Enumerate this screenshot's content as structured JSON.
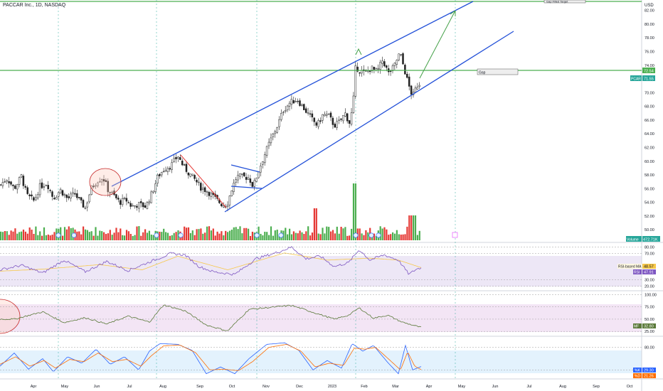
{
  "header": {
    "title": "PACCAR Inc., 1D, NASDAQ"
  },
  "currency": "USD",
  "colors": {
    "bull": "#26a69a",
    "bear": "#ef5350",
    "volume_bull": "#4caf50",
    "volume_bear": "#e53935",
    "channel": "#2250d8",
    "level": "#4caf50",
    "rsi": "#7e57c2",
    "rsi_ma": "#f7c84a",
    "mf": "#5b7a3a",
    "stoch_k": "#2962ff",
    "stoch_d": "#ff6d00",
    "text": "#131722"
  },
  "chart_data": [
    {
      "type": "candlestick",
      "title": "PACCAR Inc., 1D, NASDAQ",
      "yaxis_ticks": [
        "82.00",
        "80.00",
        "78.00",
        "76.00",
        "74.00",
        "72.00",
        "70.00",
        "68.00",
        "66.00",
        "64.00",
        "62.00",
        "60.00",
        "58.00",
        "56.00",
        "54.00",
        "52.00",
        "50.00"
      ],
      "ylim": [
        49.5,
        83
      ],
      "xaxis_ticks": [
        "Apr",
        "May",
        "Jun",
        "Jul",
        "Aug",
        "Sep",
        "Oct",
        "Nov",
        "Dec",
        "2023",
        "Feb",
        "Mar",
        "Apr",
        "May",
        "Jun",
        "Jul",
        "Aug",
        "Sep",
        "Oct"
      ],
      "price_labels": [
        {
          "name": "level",
          "value": "72.54"
        },
        {
          "name": "PCAR",
          "value": "71.55"
        },
        {
          "name": "Volume",
          "value": "472.71K"
        }
      ],
      "annotations": {
        "gap_label": "Gap",
        "target_label": "Gap Filled Target"
      },
      "series": [
        {
          "name": "PCAR",
          "anchors": [
            [
              0,
              56.5
            ],
            [
              10,
              57.5
            ],
            [
              20,
              56.0
            ],
            [
              30,
              57.8
            ],
            [
              38,
              55.0
            ],
            [
              48,
              54.2
            ],
            [
              56,
              56.3
            ],
            [
              66,
              56.8
            ],
            [
              75,
              54.6
            ],
            [
              85,
              55.8
            ],
            [
              95,
              54.5
            ],
            [
              105,
              55.3
            ],
            [
              113,
              54.0
            ],
            [
              120,
              53.2
            ],
            [
              128,
              56.0
            ],
            [
              137,
              57.2
            ],
            [
              145,
              57.6
            ],
            [
              152,
              55.8
            ],
            [
              160,
              55.0
            ],
            [
              168,
              54.0
            ],
            [
              177,
              54.4
            ],
            [
              185,
              53.4
            ],
            [
              195,
              53.7
            ],
            [
              205,
              53.4
            ],
            [
              213,
              55.2
            ],
            [
              222,
              57.8
            ],
            [
              232,
              59.0
            ],
            [
              240,
              59.3
            ],
            [
              250,
              60.8
            ],
            [
              258,
              59.2
            ],
            [
              266,
              58.2
            ],
            [
              274,
              57.3
            ],
            [
              282,
              56.2
            ],
            [
              292,
              55.6
            ],
            [
              302,
              54.6
            ],
            [
              312,
              53.7
            ],
            [
              319,
              53.6
            ],
            [
              326,
              56.0
            ],
            [
              333,
              57.8
            ],
            [
              342,
              57.7
            ],
            [
              350,
              57.6
            ],
            [
              356,
              56.3
            ],
            [
              364,
              58.8
            ],
            [
              372,
              61.0
            ],
            [
              380,
              63.0
            ],
            [
              390,
              65.2
            ],
            [
              398,
              67.4
            ],
            [
              408,
              68.6
            ],
            [
              418,
              69.0
            ],
            [
              428,
              67.6
            ],
            [
              438,
              66.2
            ],
            [
              446,
              65.2
            ],
            [
              454,
              66.8
            ],
            [
              462,
              66.6
            ],
            [
              470,
              65.2
            ],
            [
              478,
              65.8
            ],
            [
              485,
              67.0
            ],
            [
              491,
              65.6
            ],
            [
              496,
              67.8
            ],
            [
              500,
              73.8
            ],
            [
              505,
              73.3
            ],
            [
              513,
              72.8
            ],
            [
              522,
              73.6
            ],
            [
              530,
              73.0
            ],
            [
              538,
              74.8
            ],
            [
              546,
              72.8
            ],
            [
              554,
              73.8
            ],
            [
              562,
              75.8
            ],
            [
              568,
              73.6
            ],
            [
              574,
              71.2
            ],
            [
              580,
              69.4
            ],
            [
              586,
              71.0
            ],
            [
              592,
              71.55
            ]
          ]
        },
        {
          "name": "Volume",
          "value": "472.71K"
        }
      ]
    },
    {
      "type": "line",
      "name": "RSI",
      "series": [
        {
          "name": "RSI-based MA",
          "last": "48.57",
          "anchors": [
            [
              0,
              43
            ],
            [
              60,
              46
            ],
            [
              140,
              53
            ],
            [
              200,
              45
            ],
            [
              250,
              66
            ],
            [
              320,
              45
            ],
            [
              400,
              71
            ],
            [
              460,
              60
            ],
            [
              520,
              63
            ],
            [
              560,
              60
            ],
            [
              592,
              48.5
            ]
          ]
        },
        {
          "name": "RSI",
          "last": "47.91",
          "anchors": [
            [
              0,
              45
            ],
            [
              30,
              52
            ],
            [
              60,
              40
            ],
            [
              90,
              60
            ],
            [
              120,
              42
            ],
            [
              150,
              58
            ],
            [
              180,
              44
            ],
            [
              210,
              57
            ],
            [
              240,
              70
            ],
            [
              260,
              68
            ],
            [
              280,
              50
            ],
            [
              300,
              42
            ],
            [
              330,
              38
            ],
            [
              360,
              62
            ],
            [
              390,
              72
            ],
            [
              410,
              80
            ],
            [
              430,
              62
            ],
            [
              450,
              66
            ],
            [
              470,
              50
            ],
            [
              490,
              56
            ],
            [
              505,
              76
            ],
            [
              520,
              60
            ],
            [
              540,
              68
            ],
            [
              560,
              60
            ],
            [
              575,
              38
            ],
            [
              585,
              46
            ],
            [
              592,
              47.9
            ]
          ]
        }
      ],
      "levels": [
        "80.00",
        "70.00",
        "30.00",
        "20.00"
      ],
      "ylim": [
        15,
        85
      ]
    },
    {
      "type": "line",
      "name": "MF",
      "series": [
        {
          "name": "MF",
          "last": "32.80",
          "anchors": [
            [
              20,
              50
            ],
            [
              60,
              65
            ],
            [
              90,
              43
            ],
            [
              120,
              53
            ],
            [
              150,
              40
            ],
            [
              180,
              56
            ],
            [
              210,
              44
            ],
            [
              230,
              79
            ],
            [
              260,
              67
            ],
            [
              290,
              38
            ],
            [
              320,
              26
            ],
            [
              350,
              70
            ],
            [
              380,
              74
            ],
            [
              410,
              78
            ],
            [
              440,
              64
            ],
            [
              470,
              50
            ],
            [
              490,
              58
            ],
            [
              505,
              73
            ],
            [
              525,
              52
            ],
            [
              545,
              58
            ],
            [
              565,
              44
            ],
            [
              592,
              33
            ]
          ]
        }
      ],
      "levels": [
        "100.00",
        "75.00",
        "50.00",
        "25.00"
      ],
      "ylim": [
        18,
        105
      ]
    },
    {
      "type": "line",
      "name": "Stoch",
      "series": [
        {
          "name": "%K",
          "last": "29.30",
          "anchors": [
            [
              0,
              30
            ],
            [
              20,
              65
            ],
            [
              40,
              22
            ],
            [
              60,
              50
            ],
            [
              75,
              15
            ],
            [
              95,
              55
            ],
            [
              115,
              38
            ],
            [
              135,
              75
            ],
            [
              155,
              35
            ],
            [
              175,
              55
            ],
            [
              195,
              20
            ],
            [
              210,
              70
            ],
            [
              225,
              90
            ],
            [
              250,
              88
            ],
            [
              270,
              72
            ],
            [
              290,
              10
            ],
            [
              310,
              28
            ],
            [
              330,
              10
            ],
            [
              350,
              50
            ],
            [
              375,
              88
            ],
            [
              400,
              92
            ],
            [
              420,
              72
            ],
            [
              440,
              20
            ],
            [
              460,
              45
            ],
            [
              480,
              25
            ],
            [
              495,
              90
            ],
            [
              510,
              70
            ],
            [
              525,
              85
            ],
            [
              545,
              40
            ],
            [
              560,
              10
            ],
            [
              570,
              85
            ],
            [
              580,
              20
            ],
            [
              592,
              29
            ]
          ]
        },
        {
          "name": "%D",
          "last": "21.26",
          "anchors": [
            [
              0,
              35
            ],
            [
              22,
              55
            ],
            [
              42,
              30
            ],
            [
              62,
              45
            ],
            [
              78,
              25
            ],
            [
              98,
              48
            ],
            [
              118,
              42
            ],
            [
              138,
              65
            ],
            [
              158,
              42
            ],
            [
              178,
              48
            ],
            [
              198,
              30
            ],
            [
              213,
              58
            ],
            [
              230,
              84
            ],
            [
              253,
              86
            ],
            [
              275,
              66
            ],
            [
              295,
              20
            ],
            [
              315,
              22
            ],
            [
              335,
              18
            ],
            [
              355,
              42
            ],
            [
              378,
              80
            ],
            [
              403,
              88
            ],
            [
              423,
              70
            ],
            [
              443,
              28
            ],
            [
              463,
              38
            ],
            [
              483,
              32
            ],
            [
              498,
              78
            ],
            [
              513,
              75
            ],
            [
              528,
              80
            ],
            [
              548,
              46
            ],
            [
              563,
              20
            ],
            [
              573,
              68
            ],
            [
              583,
              30
            ],
            [
              592,
              21
            ]
          ]
        }
      ],
      "levels": [
        "80.00",
        "20.00"
      ],
      "ylim": [
        0,
        100
      ]
    }
  ]
}
